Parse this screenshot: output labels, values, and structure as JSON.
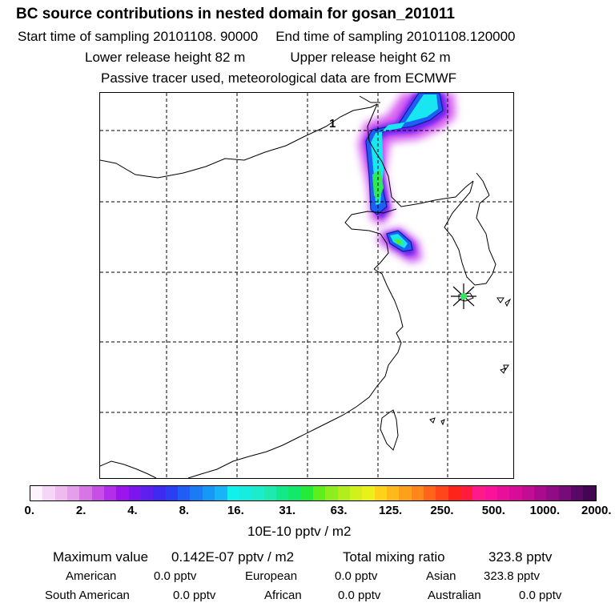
{
  "header": {
    "title": "BC  source contributions in nested domain for gosan_201011",
    "start_time": "Start time of sampling 20101108. 90000",
    "end_time": "End time of sampling 20101108.120000",
    "lower_height": "Lower release height   82 m",
    "upper_height": "Upper release height   62 m",
    "tracer_note": "Passive tracer used, meteorological data are from ECMWF"
  },
  "map": {
    "station_label": "1",
    "receptor": "gosan"
  },
  "colorbar": {
    "colors": [
      "#fdf3fd",
      "#f6d6f6",
      "#eebaf0",
      "#e59ee9",
      "#d775e6",
      "#c84ee8",
      "#b32eea",
      "#9a16ec",
      "#7b16ec",
      "#5f1fef",
      "#3f2af1",
      "#2a3ff2",
      "#1e5ef4",
      "#1a7cf5",
      "#1898f6",
      "#18b4f7",
      "#10f0ec",
      "#16ece0",
      "#1ceccc",
      "#1eeab0",
      "#14e98a",
      "#12e96a",
      "#24eb38",
      "#5cef1c",
      "#8cee1c",
      "#b2ee1c",
      "#d2f01c",
      "#eaf01a",
      "#ffd21a",
      "#ffba1a",
      "#ffa01a",
      "#ff861a",
      "#ff641a",
      "#ff461a",
      "#ff241a",
      "#ff1a3e",
      "#ff1a8a",
      "#f8139a",
      "#ea0f9a",
      "#d80c98",
      "#c30c94",
      "#ab0a8e",
      "#920a86",
      "#780a7a",
      "#5a0868",
      "#420652"
    ],
    "ticks": [
      "0.",
      "2.",
      "4.",
      "8.",
      "16.",
      "31.",
      "63.",
      "125.",
      "250.",
      "500.",
      "1000.",
      "2000."
    ],
    "units": "10E-10 pptv / m2"
  },
  "summary": {
    "max_label": "Maximum value",
    "max_value": "0.142E-07 pptv / m2",
    "total_label": "Total mixing ratio",
    "total_value": "323.8 pptv"
  },
  "sources": [
    {
      "name": "American",
      "value": "0.0 pptv"
    },
    {
      "name": "European",
      "value": "0.0 pptv"
    },
    {
      "name": "Asian",
      "value": "323.8 pptv"
    },
    {
      "name": "South American",
      "value": "0.0 pptv"
    },
    {
      "name": "African",
      "value": "0.0 pptv"
    },
    {
      "name": "Australian",
      "value": "0.0 pptv"
    }
  ]
}
